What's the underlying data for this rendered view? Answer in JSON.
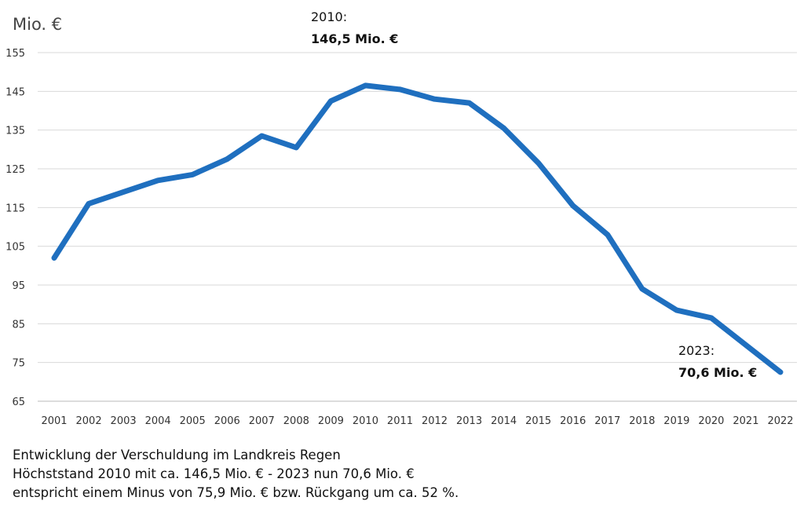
{
  "chart_data": {
    "type": "line",
    "unit_label": "Mio. €",
    "x": [
      "2001",
      "2002",
      "2003",
      "2004",
      "2005",
      "2006",
      "2007",
      "2008",
      "2009",
      "2010",
      "2011",
      "2012",
      "2013",
      "2014",
      "2015",
      "2016",
      "2017",
      "2018",
      "2019",
      "2020",
      "2021",
      "2022"
    ],
    "series": [
      {
        "color": "#1f6fbf",
        "values": [
          102,
          116,
          119,
          122,
          123.5,
          127.5,
          133.5,
          130.5,
          142.5,
          146.5,
          145.5,
          143,
          142,
          135.5,
          126.5,
          115.5,
          108,
          94,
          88.5,
          86.5,
          79.5,
          72.5
        ]
      }
    ],
    "ylim": [
      65,
      155
    ],
    "yticks": [
      65,
      75,
      85,
      95,
      105,
      115,
      125,
      135,
      145,
      155
    ],
    "grid": true,
    "annotations": [
      {
        "year": "2010:",
        "value": "146,5 Mio. €"
      },
      {
        "year": "2023:",
        "value": "70,6 Mio. €"
      }
    ]
  },
  "caption": {
    "line1": "Entwicklung der Verschuldung im Landkreis Regen",
    "line2": "Höchststand 2010 mit ca. 146,5 Mio. € - 2023 nun 70,6 Mio. €",
    "line3": "entspricht einem Minus von 75,9 Mio. € bzw. Rückgang um ca. 52 %."
  }
}
